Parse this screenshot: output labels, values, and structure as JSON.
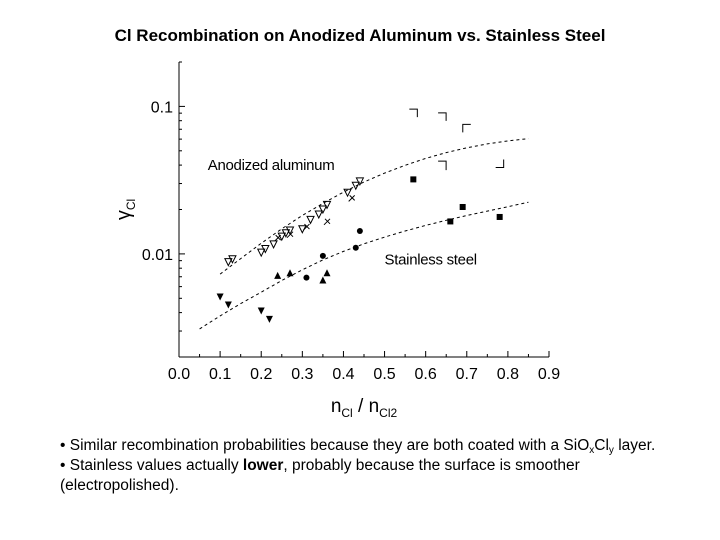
{
  "slide": {
    "title": "Cl Recombination on Anodized Aluminum vs. Stainless Steel"
  },
  "chart_data": {
    "type": "scatter",
    "title": "",
    "xlabel": {
      "base": "n",
      "sub": "Cl",
      "separator": " / ",
      "base2": "n",
      "sub2": "Cl2"
    },
    "ylabel": "γ",
    "ylabel_sub": "Cl",
    "xlim": [
      0.0,
      0.9
    ],
    "ylim": [
      0.002,
      0.2
    ],
    "y_scale": "log",
    "x_ticks": [
      "0.0",
      "0.1",
      "0.2",
      "0.3",
      "0.4",
      "0.5",
      "0.6",
      "0.7",
      "0.8",
      "0.9"
    ],
    "y_ticks": [
      {
        "value": 0.1,
        "label": "0.1"
      },
      {
        "value": 0.01,
        "label": "0.01"
      }
    ],
    "grid": false,
    "annotations": [
      {
        "text": "Anodized aluminum",
        "x": 0.07,
        "y": 0.037
      },
      {
        "text": "Stainless steel",
        "x": 0.5,
        "y": 0.0085
      }
    ],
    "fit_lines": [
      {
        "group": "anodized",
        "x": [
          0.1,
          0.15,
          0.2,
          0.25,
          0.3,
          0.35,
          0.4,
          0.45,
          0.5,
          0.55,
          0.6,
          0.65,
          0.7,
          0.75,
          0.8,
          0.85
        ],
        "y": [
          0.0073,
          0.0093,
          0.0118,
          0.0148,
          0.0182,
          0.022,
          0.0262,
          0.0307,
          0.0353,
          0.0399,
          0.0444,
          0.0486,
          0.0524,
          0.0557,
          0.0584,
          0.0605
        ]
      },
      {
        "group": "stainless",
        "x": [
          0.05,
          0.1,
          0.15,
          0.2,
          0.25,
          0.3,
          0.35,
          0.4,
          0.45,
          0.5,
          0.55,
          0.6,
          0.65,
          0.7,
          0.75,
          0.8,
          0.85
        ],
        "y": [
          0.0031,
          0.0038,
          0.0046,
          0.0055,
          0.0066,
          0.0078,
          0.0091,
          0.0104,
          0.0117,
          0.013,
          0.0143,
          0.0156,
          0.0169,
          0.0182,
          0.0195,
          0.0209,
          0.0224
        ]
      }
    ],
    "series": [
      {
        "group": "anodized",
        "marker": "corner-tr",
        "x": [
          0.57,
          0.64
        ],
        "y": [
          0.09,
          0.085
        ]
      },
      {
        "group": "anodized",
        "marker": "corner-tl",
        "x": [
          0.7
        ],
        "y": [
          0.071
        ]
      },
      {
        "group": "anodized",
        "marker": "corner-br",
        "x": [
          0.64
        ],
        "y": [
          0.04
        ]
      },
      {
        "group": "anodized",
        "marker": "corner-bl",
        "x": [
          0.78
        ],
        "y": [
          0.041
        ]
      },
      {
        "group": "anodized",
        "marker": "triangle-open-down",
        "x": [
          0.12,
          0.13,
          0.2,
          0.21,
          0.23,
          0.25,
          0.26,
          0.27,
          0.3,
          0.32,
          0.34,
          0.35,
          0.36,
          0.41,
          0.43,
          0.44
        ],
        "y": [
          0.0088,
          0.0092,
          0.0102,
          0.0108,
          0.0116,
          0.0131,
          0.0138,
          0.0144,
          0.0147,
          0.017,
          0.0185,
          0.02,
          0.0215,
          0.026,
          0.029,
          0.031
        ]
      },
      {
        "group": "anodized",
        "marker": "cross-tilted",
        "x": [
          0.24,
          0.27,
          0.31,
          0.36,
          0.42
        ],
        "y": [
          0.0128,
          0.0135,
          0.0152,
          0.0165,
          0.0238
        ]
      },
      {
        "group": "stainless",
        "marker": "triangle-filled-up",
        "x": [
          0.24,
          0.27,
          0.35,
          0.36
        ],
        "y": [
          0.0071,
          0.0074,
          0.0066,
          0.0074
        ]
      },
      {
        "group": "stainless",
        "marker": "triangle-filled-down",
        "x": [
          0.1,
          0.12,
          0.2,
          0.22
        ],
        "y": [
          0.0051,
          0.0045,
          0.0041,
          0.0036
        ]
      },
      {
        "group": "stainless",
        "marker": "circle-filled",
        "x": [
          0.31,
          0.35,
          0.43,
          0.44
        ],
        "y": [
          0.0069,
          0.0097,
          0.011,
          0.0143
        ]
      },
      {
        "group": "stainless",
        "marker": "square-filled",
        "x": [
          0.57,
          0.66,
          0.69,
          0.78
        ],
        "y": [
          0.032,
          0.0166,
          0.0208,
          0.0178
        ]
      }
    ]
  },
  "bullets": {
    "b1_text": "• Similar recombination probabilities because they are both coated with a SiO",
    "b1_sub_x": "x",
    "b1_mid": "Cl",
    "b1_sub_y": "y",
    "b1_end": " layer.",
    "b2_pre": "• Stainless values actually ",
    "b2_bold": "lower",
    "b2_post": ", probably because the surface is smoother (electropolished)."
  }
}
